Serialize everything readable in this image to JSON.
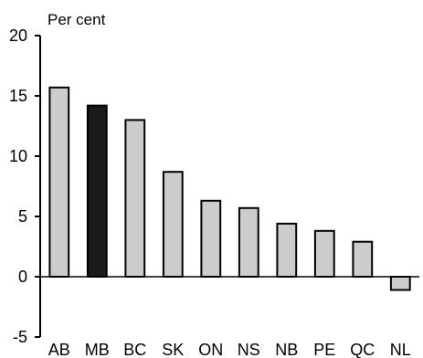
{
  "chart_data": {
    "type": "bar",
    "ylabel": "Per cent",
    "categories": [
      "AB",
      "MB",
      "BC",
      "SK",
      "ON",
      "NS",
      "NB",
      "PE",
      "QC",
      "NL"
    ],
    "values": [
      15.7,
      14.2,
      13.0,
      8.7,
      6.3,
      5.7,
      4.4,
      3.8,
      2.9,
      -1.1
    ],
    "highlight": "MB",
    "ylim": [
      -5,
      20
    ],
    "yticks": [
      -5,
      0,
      5,
      10,
      15,
      20
    ],
    "grid": false,
    "colors": {
      "bar": "#cccccc",
      "highlight": "#1a1a1a",
      "stroke": "#000000"
    }
  }
}
